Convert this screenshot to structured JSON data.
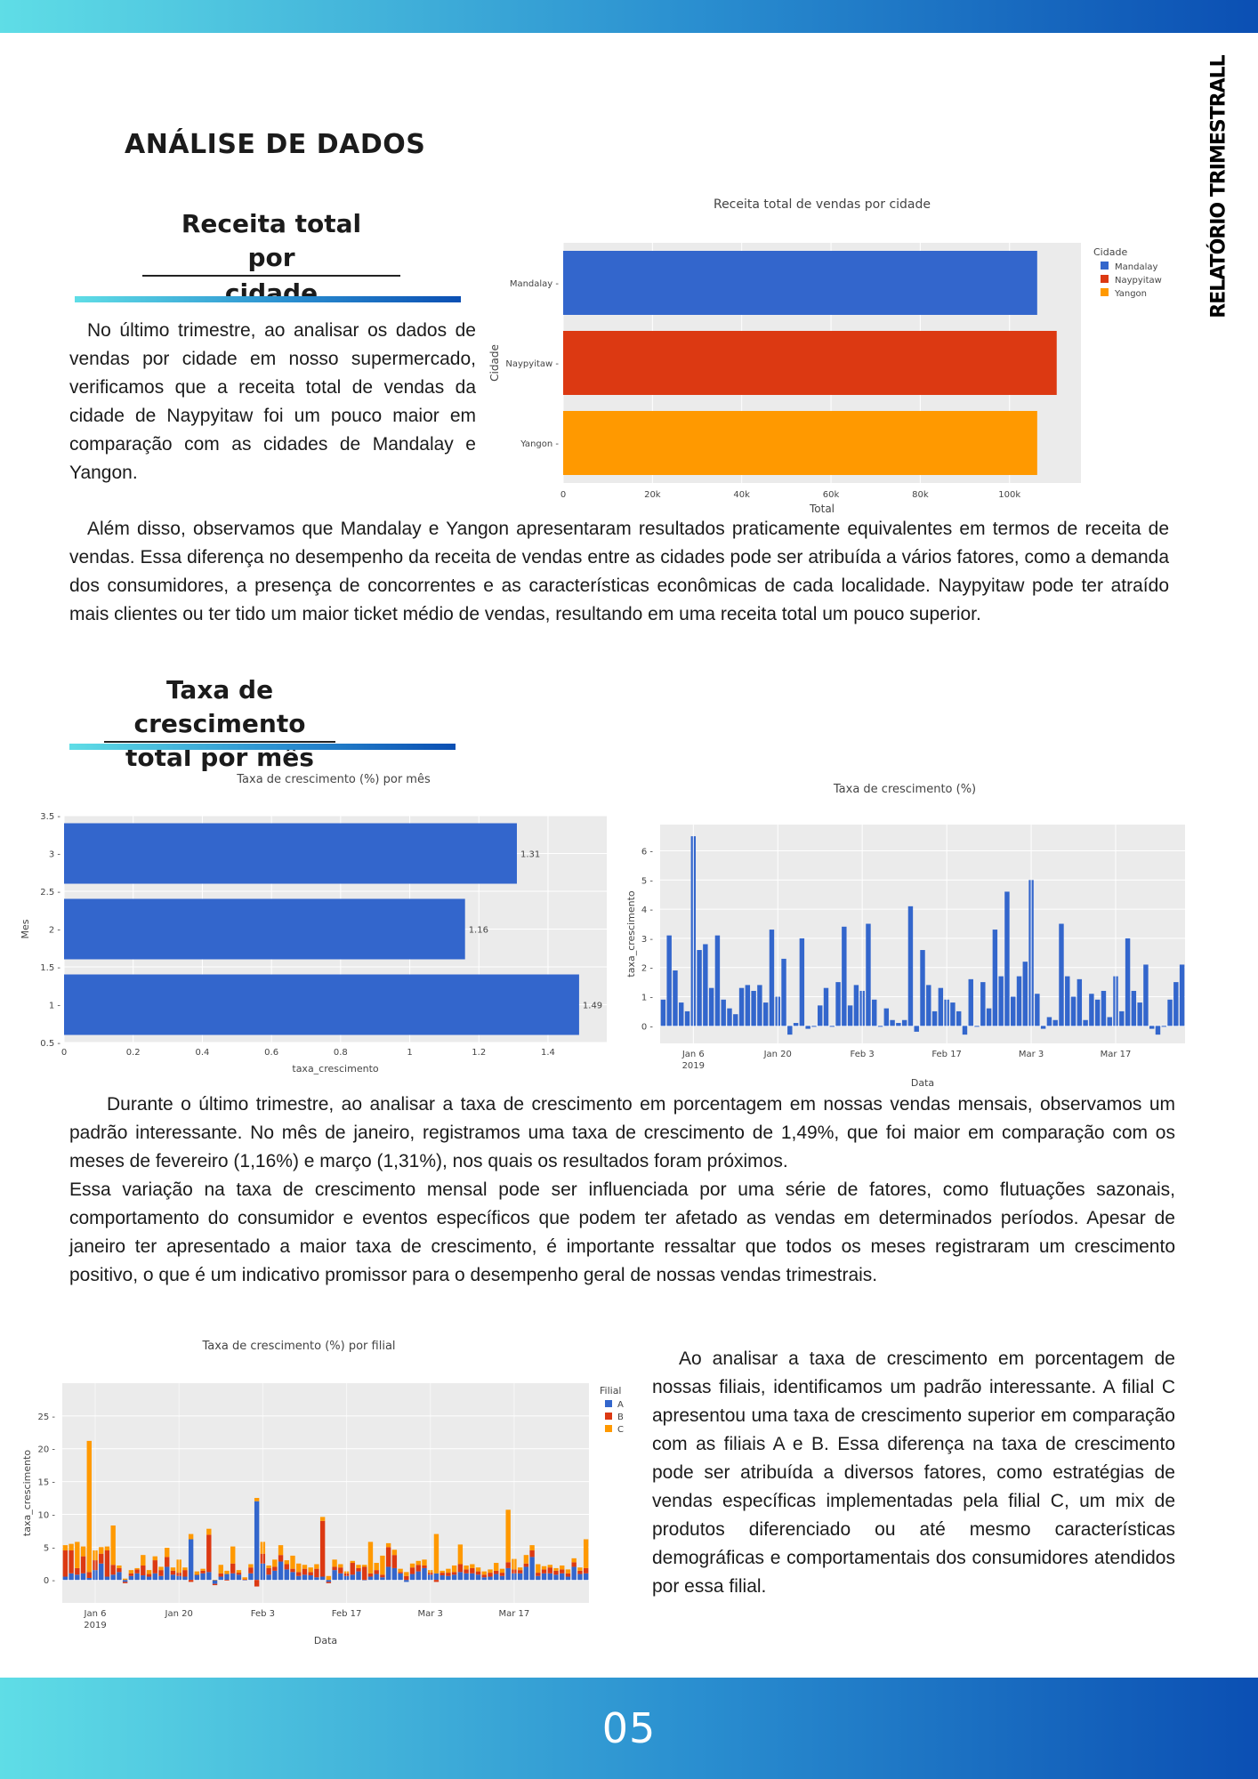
{
  "header": {
    "side_title": "RELATÓRIO TRIMESTRALL",
    "main_heading": "ANÁLISE DE DADOS"
  },
  "section1": {
    "title_line1": "Receita total por",
    "title_line2": "cidade",
    "paragraph1": "No último trimestre, ao analisar os dados de vendas por cidade em nosso supermercado, verificamos que a receita total de vendas da cidade de Naypyitaw foi um pouco maior em comparação com as cidades de Mandalay e Yangon.",
    "paragraph2": "Além disso, observamos que Mandalay e Yangon apresentaram resultados praticamente equivalentes em termos de receita de vendas. Essa diferença no desempenho da receita de vendas entre as cidades pode ser atribuída a vários fatores, como a demanda dos consumidores, a presença de concorrentes e as características econômicas de cada localidade. Naypyitaw pode ter atraído mais clientes ou ter tido um maior ticket médio de vendas, resultando em uma receita total um pouco superior."
  },
  "section2": {
    "title_line1": "Taxa de crescimento",
    "title_line2": "total por mês",
    "paragraph1": "Durante o último trimestre, ao analisar a taxa de crescimento em porcentagem em nossas vendas mensais, observamos um padrão interessante. No mês de janeiro, registramos uma taxa de crescimento de 1,49%, que foi maior em comparação com os meses de fevereiro (1,16%) e março (1,31%), nos quais os resultados foram próximos.",
    "paragraph2": "Essa variação na taxa de crescimento mensal pode ser influenciada por uma série de fatores, como flutuações sazonais, comportamento do consumidor e eventos específicos que podem ter afetado as vendas em determinados períodos. Apesar de janeiro ter apresentado a maior taxa de crescimento, é importante ressaltar que todos os meses registraram um crescimento positivo, o que é um indicativo promissor para o desempenho geral de nossas vendas trimestrais.",
    "paragraph3": "Ao analisar a taxa de crescimento em porcentagem de nossas filiais, identificamos um padrão interessante. A filial C apresentou uma taxa de crescimento superior em comparação com as filiais A e B. Essa diferença na taxa de crescimento pode ser atribuída a diversos fatores, como estratégias de vendas específicas implementadas pela filial C, um mix de produtos diferenciado ou até mesmo características demográficas e comportamentais dos consumidores atendidos por essa filial."
  },
  "footer": {
    "page_number": "05"
  },
  "colors": {
    "blue": "#3366cc",
    "red": "#dc3912",
    "orange": "#ff9900",
    "plot_bg": "#ebebeb"
  },
  "chart_data": [
    {
      "type": "bar",
      "orientation": "horizontal",
      "title": "Receita total de vendas por cidade",
      "xlabel": "Total",
      "ylabel": "Cidade",
      "categories": [
        "Mandalay",
        "Naypyitaw",
        "Yangon"
      ],
      "values": [
        106198,
        110568,
        106200
      ],
      "bar_colors": [
        "#3366cc",
        "#dc3912",
        "#ff9900"
      ],
      "xlim": [
        0,
        116000
      ],
      "xticks": [
        0,
        20000,
        40000,
        60000,
        80000,
        100000
      ],
      "xtick_labels": [
        "0",
        "20k",
        "40k",
        "60k",
        "80k",
        "100k"
      ],
      "legend": {
        "title": "Cidade",
        "entries": [
          "Mandalay",
          "Naypyitaw",
          "Yangon"
        ],
        "placement": "right"
      }
    },
    {
      "type": "bar",
      "orientation": "horizontal",
      "title": "Taxa de crescimento (%) por mês",
      "xlabel": "taxa_crescimento",
      "ylabel": "Mes",
      "categories": [
        1,
        2,
        3
      ],
      "values": [
        1.49,
        1.16,
        1.31
      ],
      "data_labels": [
        "1.49",
        "1.16",
        "1.31"
      ],
      "xlim": [
        0,
        1.57
      ],
      "ylim": [
        0.5,
        3.5
      ],
      "xticks": [
        0,
        0.2,
        0.4,
        0.6,
        0.8,
        1,
        1.2,
        1.4
      ],
      "xtick_labels": [
        "0",
        "0.2",
        "0.4",
        "0.6",
        "0.8",
        "1",
        "1.2",
        "1.4"
      ],
      "yticks": [
        0.5,
        1,
        1.5,
        2,
        2.5,
        3,
        3.5
      ],
      "ytick_labels": [
        "0.5",
        "1",
        "1.5",
        "2",
        "2.5",
        "3",
        "3.5"
      ]
    },
    {
      "type": "bar",
      "title": "Taxa de crescimento (%)",
      "xlabel": "Data",
      "ylabel": "taxa_crescimento",
      "x_start": "2019-01-01",
      "x_end": "2019-03-30",
      "values": [
        0.9,
        3.1,
        1.9,
        0.8,
        0.5,
        6.5,
        2.6,
        2.8,
        1.3,
        3.1,
        0.9,
        0.6,
        0.4,
        1.3,
        1.4,
        1.2,
        1.4,
        0.8,
        3.3,
        1.0,
        2.3,
        -0.3,
        0.1,
        3.0,
        -0.1,
        0.0,
        0.7,
        1.3,
        -0.0,
        1.5,
        3.4,
        0.7,
        1.4,
        1.2,
        3.5,
        0.9,
        0.0,
        0.6,
        0.2,
        0.1,
        0.2,
        4.1,
        -0.2,
        2.6,
        1.4,
        0.5,
        1.3,
        0.9,
        0.8,
        0.5,
        -0.3,
        1.6,
        0.0,
        1.5,
        0.6,
        3.3,
        1.7,
        4.6,
        1.0,
        1.7,
        2.2,
        5.0,
        1.1,
        -0.1,
        0.3,
        0.2,
        3.5,
        1.7,
        1.0,
        1.6,
        0.2,
        1.1,
        0.9,
        1.2,
        0.3,
        1.7,
        0.5,
        3.0,
        1.2,
        0.8,
        2.1,
        -0.1,
        -0.3,
        0.0,
        0.9,
        1.5,
        2.1
      ],
      "xticks": [
        "2019-01-06",
        "2019-01-20",
        "2019-02-03",
        "2019-02-17",
        "2019-03-03",
        "2019-03-17"
      ],
      "xtick_labels": [
        "Jan 6",
        "Jan 20",
        "Feb 3",
        "Feb 17",
        "Mar 3",
        "Mar 17"
      ],
      "xtick_sublabel": "2019",
      "ylim": [
        -0.6,
        6.9
      ],
      "yticks": [
        0,
        1,
        2,
        3,
        4,
        5,
        6
      ],
      "ytick_labels": [
        "0",
        "1",
        "2",
        "3",
        "4",
        "5",
        "6"
      ]
    },
    {
      "type": "bar",
      "stacked": true,
      "title": "Taxa de crescimento (%) por filial",
      "xlabel": "Data",
      "ylabel": "taxa_crescimento",
      "x_start": "2019-01-01",
      "x_end": "2019-03-30",
      "series": [
        {
          "name": "A",
          "color": "#3366cc",
          "values": [
            0.5,
            1.0,
            0.8,
            1.0,
            0.3,
            1.5,
            2.5,
            0.5,
            0.8,
            1.2,
            -0.3,
            0.6,
            1.0,
            0.7,
            0.5,
            1.0,
            0.6,
            2.0,
            0.8,
            0.6,
            0.5,
            6.2,
            0.8,
            1.0,
            1.2,
            -0.6,
            0.5,
            0.9,
            1.0,
            0.8,
            0.0,
            1.0,
            12.0,
            2.5,
            0.8,
            1.4,
            2.8,
            1.6,
            1.2,
            0.6,
            0.8,
            0.7,
            0.4,
            0.5,
            -0.3,
            1.5,
            1.0,
            0.6,
            0.8,
            1.3,
            0.0,
            0.5,
            0.9,
            0.4,
            2.0,
            1.8,
            1.0,
            -0.3,
            0.9,
            1.3,
            1.8,
            0.8,
            1.0,
            0.7,
            0.6,
            0.8,
            1.2,
            1.0,
            1.0,
            0.8,
            0.4,
            0.5,
            0.9,
            0.6,
            1.8,
            1.0,
            1.0,
            2.0,
            3.5,
            0.6,
            1.0,
            1.0,
            0.8,
            1.0,
            0.5,
            2.0,
            0.9,
            1.0
          ]
        },
        {
          "name": "B",
          "color": "#dc3912",
          "values": [
            4.0,
            3.5,
            1.0,
            2.6,
            0.9,
            1.5,
            1.5,
            4.0,
            1.5,
            0.6,
            -0.2,
            0.4,
            0.6,
            1.5,
            0.4,
            2.0,
            0.9,
            1.5,
            0.6,
            0.5,
            1.0,
            -0.3,
            0.0,
            0.4,
            5.7,
            -0.2,
            0.5,
            -0.1,
            1.5,
            0.3,
            0.1,
            0.9,
            -1.0,
            1.5,
            1.0,
            0.6,
            1.0,
            0.8,
            0.5,
            0.6,
            0.9,
            0.5,
            1.3,
            8.5,
            -0.2,
            0.5,
            0.9,
            0.4,
            1.8,
            0.5,
            2.0,
            0.5,
            0.6,
            0.4,
            3.0,
            2.0,
            0.2,
            0.6,
            1.0,
            1.0,
            0.4,
            0.3,
            -0.3,
            0.4,
            0.5,
            0.4,
            1.2,
            0.6,
            0.8,
            0.5,
            0.4,
            0.6,
            0.5,
            0.5,
            0.9,
            0.6,
            0.5,
            0.5,
            1.0,
            0.5,
            0.6,
            0.9,
            0.6,
            0.6,
            0.5,
            0.7,
            0.5,
            0.8
          ]
        },
        {
          "name": "C",
          "color": "#ff9900",
          "values": [
            0.8,
            1.0,
            4.0,
            1.5,
            20.0,
            1.5,
            1.0,
            0.6,
            6.0,
            0.4,
            0.2,
            0.5,
            0.2,
            1.6,
            0.6,
            0.6,
            0.5,
            1.4,
            0.5,
            2.0,
            0.4,
            0.8,
            0.5,
            0.3,
            0.9,
            0.0,
            1.3,
            0.5,
            2.6,
            0.4,
            0.3,
            0.5,
            0.5,
            1.8,
            0.4,
            1.1,
            1.5,
            0.6,
            2.0,
            1.3,
            0.6,
            0.7,
            0.7,
            0.6,
            0.6,
            1.1,
            0.5,
            0.3,
            0.3,
            0.5,
            0.3,
            4.8,
            1.1,
            2.9,
            0.6,
            0.8,
            0.5,
            0.6,
            0.6,
            0.6,
            0.9,
            0.4,
            6.0,
            0.3,
            0.6,
            1.0,
            3.0,
            0.6,
            0.6,
            0.6,
            0.5,
            0.5,
            1.2,
            0.6,
            8.0,
            1.6,
            0.4,
            1.3,
            0.8,
            1.3,
            0.5,
            0.4,
            0.4,
            0.6,
            0.6,
            0.6,
            0.5,
            4.4
          ]
        }
      ],
      "legend": {
        "title": "Filial",
        "entries": [
          "A",
          "B",
          "C"
        ],
        "placement": "right"
      },
      "xticks": [
        "2019-01-06",
        "2019-01-20",
        "2019-02-03",
        "2019-02-17",
        "2019-03-03",
        "2019-03-17"
      ],
      "xtick_labels": [
        "Jan 6",
        "Jan 20",
        "Feb 3",
        "Feb 17",
        "Mar 3",
        "Mar 17"
      ],
      "xtick_sublabel": "2019",
      "ylim": [
        -3.5,
        30
      ],
      "yticks": [
        0,
        5,
        10,
        15,
        20,
        25
      ],
      "ytick_labels": [
        "0",
        "5",
        "10",
        "15",
        "20",
        "25"
      ]
    }
  ]
}
